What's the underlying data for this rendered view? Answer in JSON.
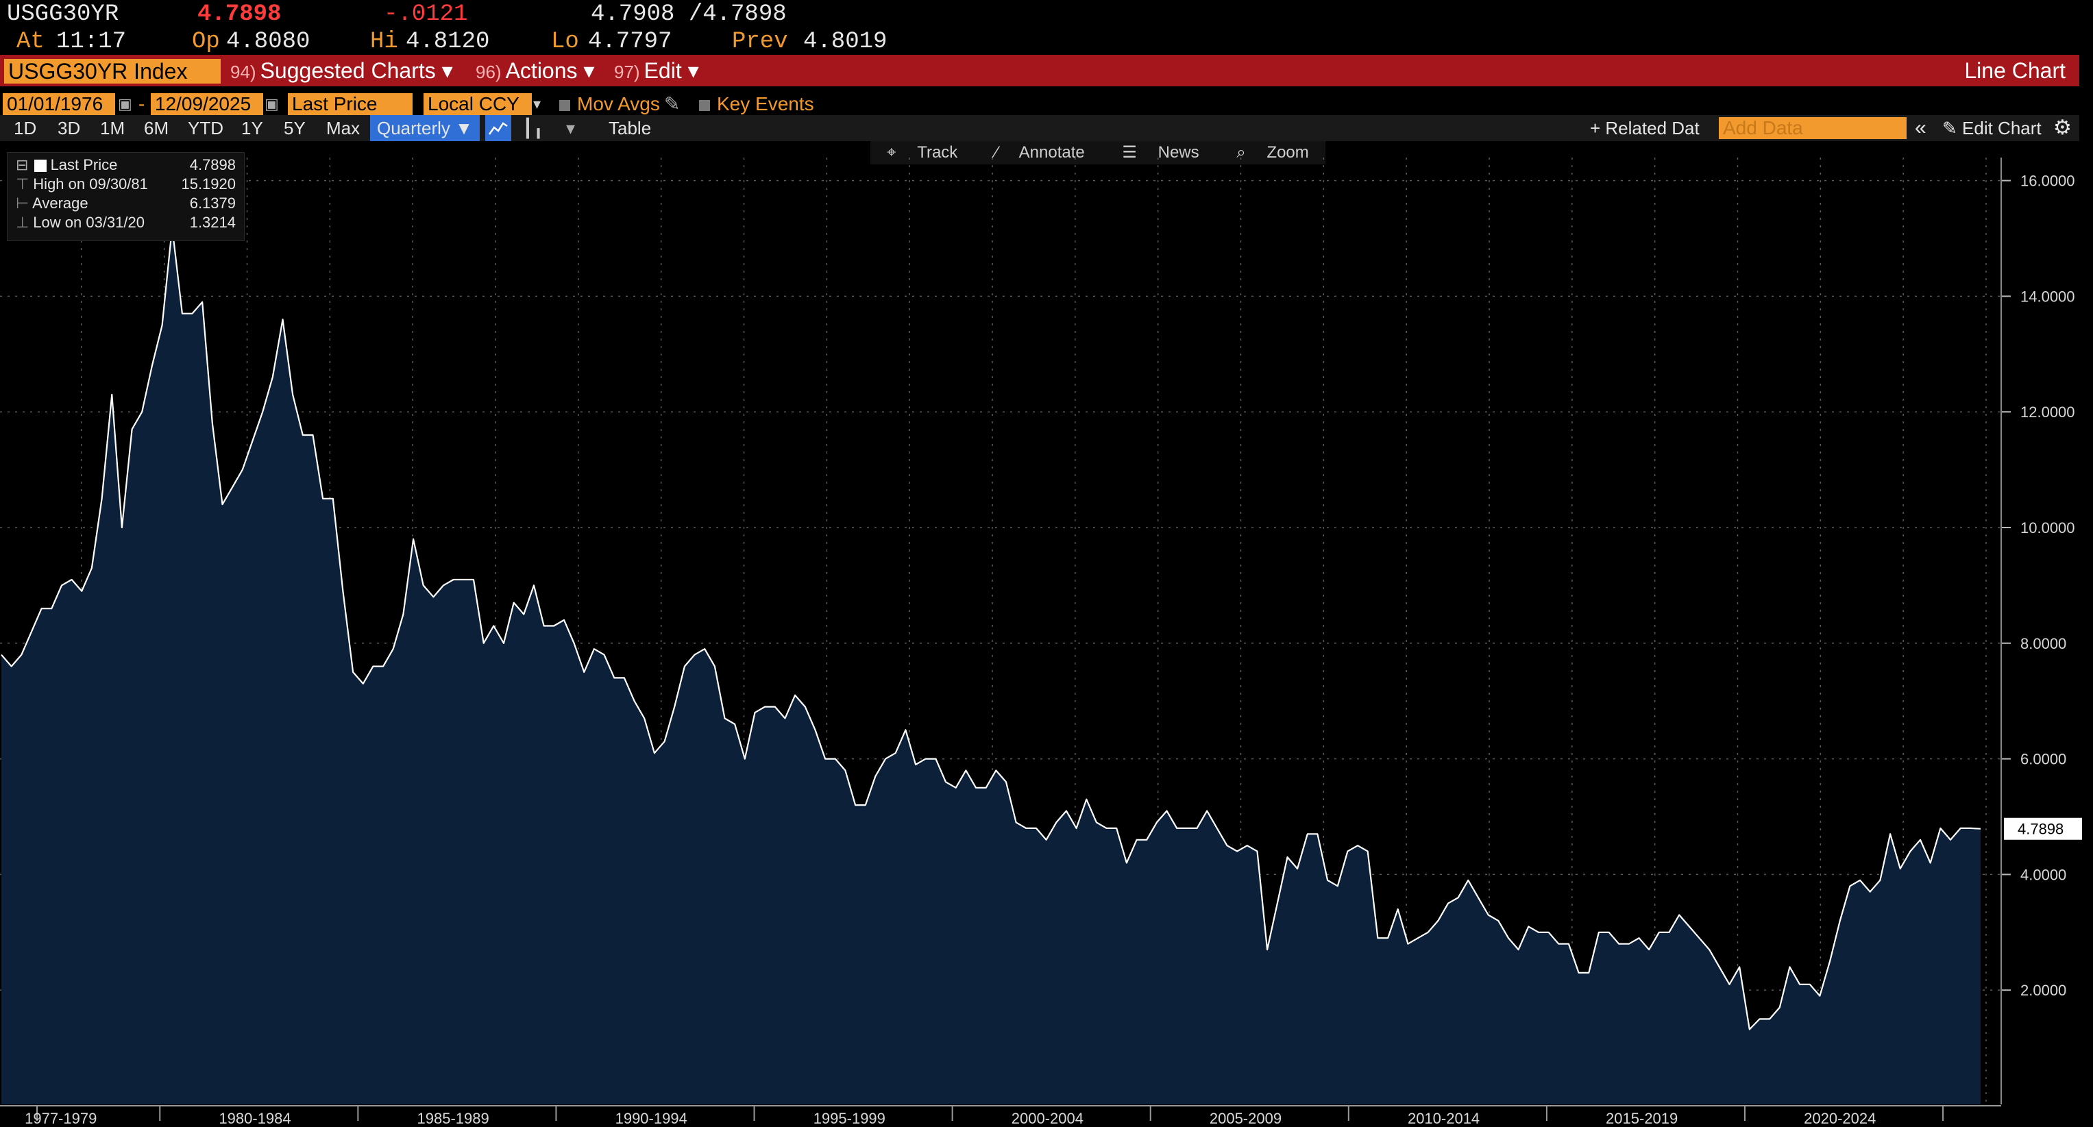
{
  "ticker": {
    "symbol": "USGG30YR",
    "last": "4.7898",
    "change": "-.0121",
    "bid_ask": "4.7908 /4.7898",
    "at_label": "At",
    "time": "11:17",
    "op_label": "Op",
    "open": "4.8080",
    "hi_label": "Hi",
    "high": "4.8120",
    "lo_label": "Lo",
    "low": "4.7797",
    "prev_label": "Prev",
    "prev": "4.8019"
  },
  "menubar": {
    "security": "USGG30YR Index",
    "suggested_num": "94)",
    "suggested": "Suggested Charts ▾",
    "actions_num": "96)",
    "actions": "Actions ▾",
    "edit_num": "97)",
    "edit": "Edit ▾",
    "chart_type": "Line Chart"
  },
  "controls": {
    "start_date": "01/01/1976",
    "date_sep": "-",
    "end_date": "12/09/2025",
    "field": "Last Price",
    "currency": "Local CCY",
    "mov_avgs": "Mov Avgs",
    "key_events": "Key Events"
  },
  "toolbar": {
    "periods": [
      "1D",
      "3D",
      "1M",
      "6M",
      "YTD",
      "1Y",
      "5Y",
      "Max"
    ],
    "frequency": "Quarterly ▼",
    "table": "Table",
    "related": "+ Related Dat",
    "add_data_placeholder": "Add Data",
    "edit_chart": "Edit Chart"
  },
  "tools": {
    "track": "Track",
    "annotate": "Annotate",
    "news": "News",
    "zoom": "Zoom"
  },
  "legend": {
    "last_label": "Last Price",
    "last_value": "4.7898",
    "high_label": "High on 09/30/81",
    "high_value": "15.1920",
    "avg_label": "Average",
    "avg_value": "6.1379",
    "low_label": "Low on 03/31/20",
    "low_value": "1.3214"
  },
  "colors": {
    "area_fill": "#0c2039",
    "line": "#ffffff",
    "accent_orange": "#f29a2e",
    "menubar_red": "#a5161c"
  },
  "chart_data": {
    "type": "area",
    "y_label_current": "4.7898",
    "ylim": [
      0,
      16
    ],
    "y_ticks": [
      "2.0000",
      "4.0000",
      "6.0000",
      "8.0000",
      "10.0000",
      "12.0000",
      "14.0000",
      "16.0000"
    ],
    "x_tick_labels": [
      "1977-1979",
      "1980-1984",
      "1985-1989",
      "1990-1994",
      "1995-1999",
      "2000-2004",
      "2005-2009",
      "2010-2014",
      "2015-2019",
      "2020-2024"
    ],
    "x_start": 1976.0,
    "x_end": 2025.95,
    "grid": true,
    "series": [
      {
        "values": [
          7.8,
          7.6,
          7.8,
          8.2,
          8.6,
          8.6,
          9.0,
          9.1,
          8.9,
          9.3,
          10.5,
          12.3,
          10.0,
          11.7,
          12.0,
          12.8,
          13.5,
          15.19,
          13.7,
          13.7,
          13.9,
          11.8,
          10.4,
          10.7,
          11.0,
          11.5,
          12.0,
          12.6,
          13.6,
          12.3,
          11.6,
          11.6,
          10.5,
          10.5,
          8.9,
          7.5,
          7.3,
          7.6,
          7.6,
          7.9,
          8.5,
          9.8,
          9.0,
          8.8,
          9.0,
          9.1,
          9.1,
          9.1,
          8.0,
          8.3,
          8.0,
          8.7,
          8.5,
          9.0,
          8.3,
          8.3,
          8.4,
          8.0,
          7.5,
          7.9,
          7.8,
          7.4,
          7.4,
          7.0,
          6.7,
          6.1,
          6.3,
          6.9,
          7.6,
          7.8,
          7.9,
          7.6,
          6.7,
          6.6,
          6.0,
          6.8,
          6.9,
          6.9,
          6.7,
          7.1,
          6.9,
          6.5,
          6.0,
          6.0,
          5.8,
          5.2,
          5.2,
          5.7,
          6.0,
          6.1,
          6.5,
          5.9,
          6.0,
          6.0,
          5.6,
          5.5,
          5.8,
          5.5,
          5.5,
          5.8,
          5.6,
          4.9,
          4.8,
          4.8,
          4.6,
          4.9,
          5.1,
          4.8,
          5.3,
          4.9,
          4.8,
          4.8,
          4.2,
          4.6,
          4.6,
          4.9,
          5.1,
          4.8,
          4.8,
          4.8,
          5.1,
          4.8,
          4.5,
          4.4,
          4.5,
          4.4,
          2.7,
          3.5,
          4.3,
          4.1,
          4.7,
          4.7,
          3.9,
          3.8,
          4.4,
          4.5,
          4.4,
          2.9,
          2.9,
          3.4,
          2.8,
          2.9,
          3.0,
          3.2,
          3.5,
          3.6,
          3.9,
          3.6,
          3.3,
          3.2,
          2.9,
          2.7,
          3.1,
          3.0,
          3.0,
          2.8,
          2.8,
          2.3,
          2.3,
          3.0,
          3.0,
          2.8,
          2.8,
          2.9,
          2.7,
          3.0,
          3.0,
          3.3,
          3.1,
          2.9,
          2.7,
          2.4,
          2.1,
          2.4,
          1.3214,
          1.5,
          1.5,
          1.7,
          2.4,
          2.1,
          2.1,
          1.9,
          2.5,
          3.2,
          3.8,
          3.9,
          3.7,
          3.9,
          4.7,
          4.1,
          4.4,
          4.6,
          4.2,
          4.8,
          4.6,
          4.8,
          4.8,
          4.7898
        ]
      }
    ]
  }
}
